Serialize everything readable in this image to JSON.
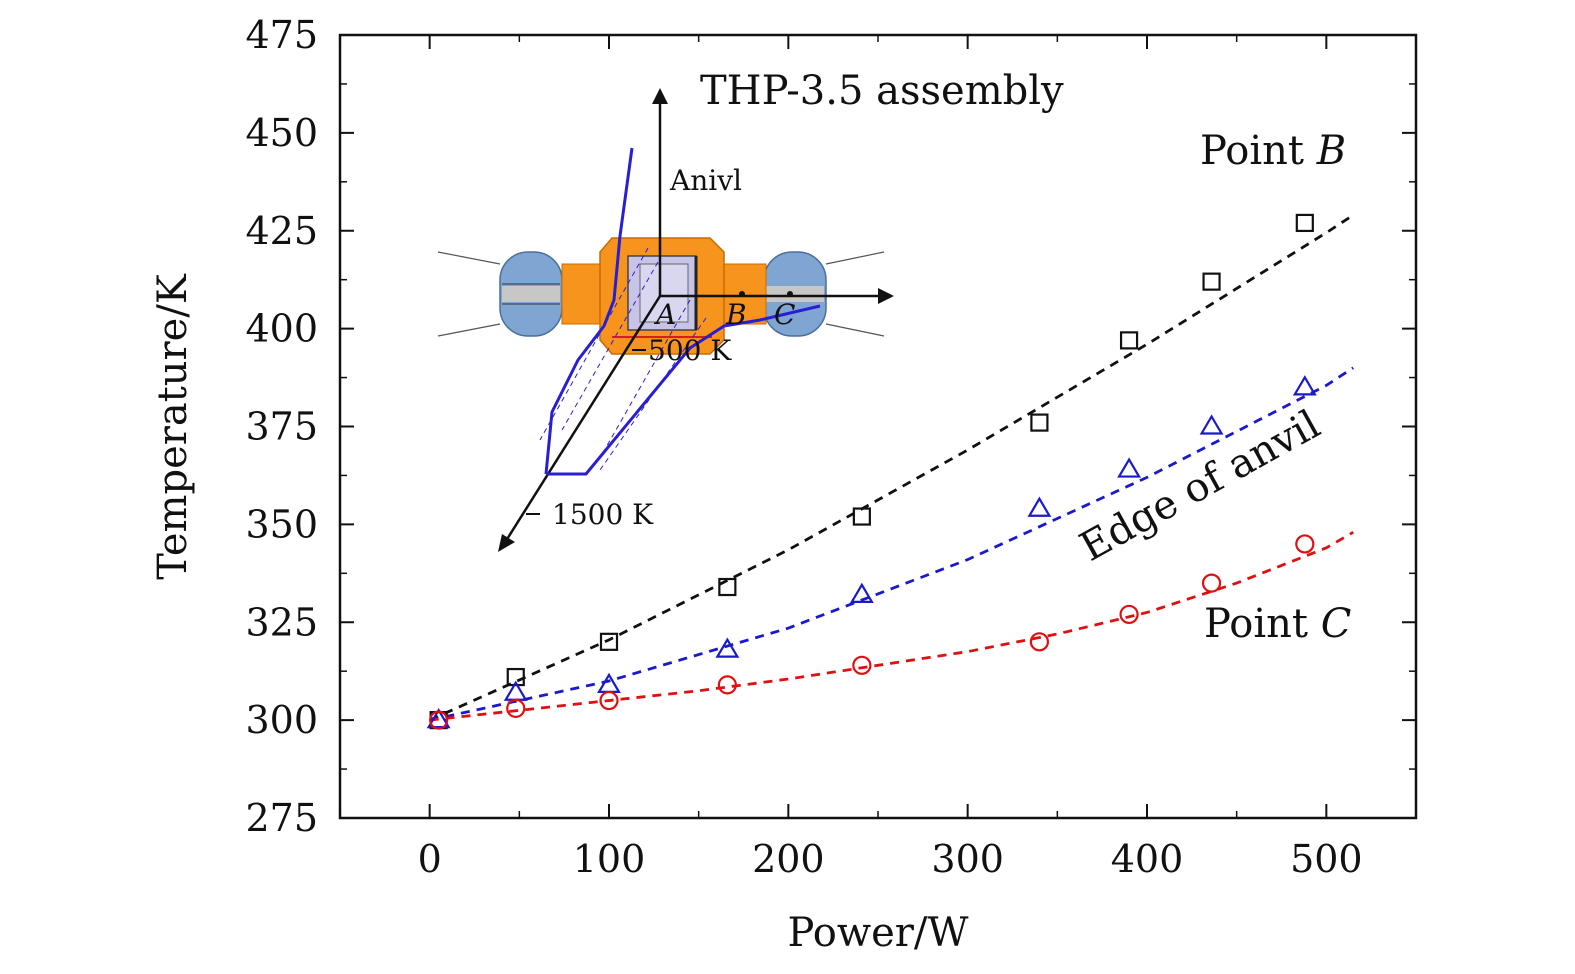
{
  "chart_data": {
    "type": "scatter",
    "xlabel": "Power/W",
    "ylabel": "Temperature/K",
    "xlim": [
      -50,
      550
    ],
    "ylim": [
      275,
      475
    ],
    "xticks": [
      0,
      100,
      200,
      300,
      400,
      500
    ],
    "yticks": [
      275,
      300,
      325,
      350,
      375,
      400,
      425,
      450,
      475
    ],
    "grid": false,
    "series": [
      {
        "name": "Point B",
        "marker": "square",
        "color": "#111111",
        "x": [
          5,
          48,
          100,
          166,
          241,
          340,
          390,
          436,
          488
        ],
        "y": [
          300,
          311,
          320,
          334,
          352,
          376,
          397,
          412,
          427
        ],
        "fit_x": [
          0,
          100,
          200,
          300,
          400,
          500,
          515
        ],
        "fit_y": [
          300,
          320.5,
          343.5,
          369,
          396,
          424.5,
          429
        ]
      },
      {
        "name": "Edge of anvil",
        "marker": "triangle",
        "color": "#1a1acc",
        "x": [
          5,
          48,
          100,
          166,
          241,
          340,
          390,
          436,
          488
        ],
        "y": [
          300,
          307,
          309,
          318,
          332,
          354,
          364,
          375,
          385
        ],
        "fit_x": [
          0,
          100,
          200,
          300,
          400,
          500,
          515
        ],
        "fit_y": [
          300,
          310,
          323.5,
          341,
          362,
          385.5,
          390
        ]
      },
      {
        "name": "Point C",
        "marker": "circle",
        "color": "#e01010",
        "x": [
          5,
          48,
          100,
          166,
          241,
          340,
          390,
          436,
          488
        ],
        "y": [
          300,
          303,
          305,
          309,
          314,
          320,
          327,
          335,
          345
        ],
        "fit_x": [
          0,
          50,
          100,
          150,
          200,
          250,
          300,
          350,
          400,
          450,
          500,
          515
        ],
        "fit_y": [
          300,
          302.5,
          305,
          307.5,
          310.5,
          314,
          317.5,
          322,
          327.5,
          335,
          344,
          348
        ]
      }
    ],
    "annotations": [
      {
        "text": "Point ",
        "italic_part": "B",
        "series": "Point B"
      },
      {
        "text": "Edge of anvil",
        "series": "Edge of anvil"
      },
      {
        "text": "Point ",
        "italic_part": "C",
        "series": "Point C"
      }
    ]
  },
  "inset": {
    "title": "THP-3.5 assembly",
    "axis_label_vertical": "Anivl",
    "label_500": "500 K",
    "label_1500": "1500 K",
    "point_a": "A",
    "point_b": "B",
    "point_c": "C",
    "colors": {
      "anvil_blue": "#7fa6d3",
      "assembly_orange": "#f7941d",
      "sample_lavender": "#c8c4e8",
      "curve_blue": "#2a1fd0",
      "axis": "#111111"
    }
  }
}
